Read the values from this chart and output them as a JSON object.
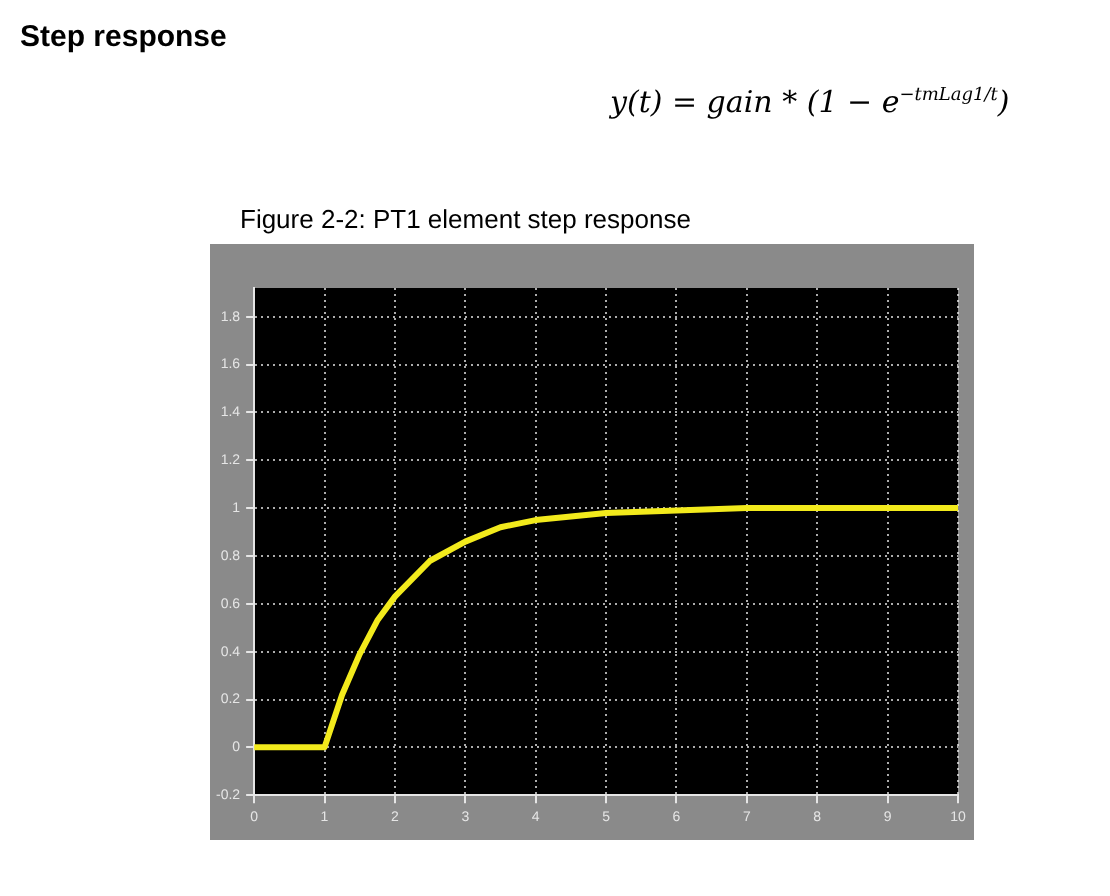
{
  "chart_data": {
    "type": "line",
    "title": "Step response",
    "subtitle": "y(t) = gain * (1 − e$^{−tmLag1/t}$)",
    "annotations": [
      "Figure 2-2: PT1 element step response"
    ],
    "x": [
      0,
      1,
      1.25,
      1.5,
      1.75,
      2,
      2.5,
      3,
      3.5,
      4,
      5,
      6,
      7,
      10
    ],
    "series": [
      {
        "color": "#f2ea1c",
        "values": [
          0,
          0,
          0.22,
          0.39,
          0.53,
          0.63,
          0.78,
          0.86,
          0.92,
          0.95,
          0.98,
          0.99,
          1.0,
          1.0
        ]
      }
    ],
    "xlim": [
      0,
      10
    ],
    "xticks": [
      0,
      1,
      2,
      3,
      4,
      5,
      6,
      7,
      8,
      9,
      10
    ],
    "ylim": [
      -0.2,
      1.92
    ],
    "yticks": [
      -0.2,
      0,
      0.2,
      0.4,
      0.6,
      0.8,
      1,
      1.2,
      1.4,
      1.6,
      1.8
    ],
    "grid": true,
    "legend": false,
    "marker": "none",
    "line_style": "solid"
  }
}
